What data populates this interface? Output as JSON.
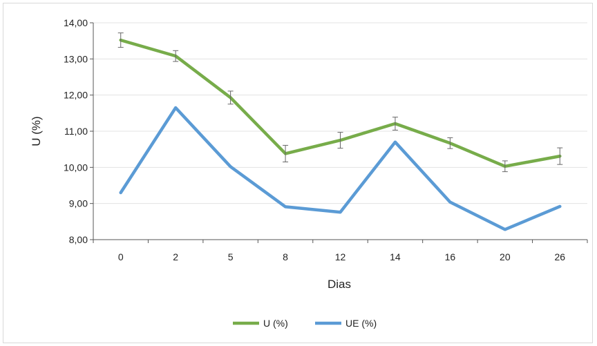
{
  "chart_data": {
    "type": "line",
    "title": "",
    "xlabel": "Dias",
    "ylabel": "U (%)",
    "categories": [
      "0",
      "2",
      "5",
      "8",
      "12",
      "14",
      "16",
      "20",
      "26"
    ],
    "ylim": [
      8,
      14
    ],
    "yticks": [
      "8,00",
      "9,00",
      "10,00",
      "11,00",
      "12,00",
      "13,00",
      "14,00"
    ],
    "grid": true,
    "legend_position": "bottom",
    "series": [
      {
        "name": "U (%)",
        "color": "#77ac4a",
        "values": [
          13.52,
          13.08,
          11.93,
          10.38,
          10.75,
          11.21,
          10.67,
          10.03,
          10.31
        ],
        "error": [
          0.2,
          0.15,
          0.18,
          0.23,
          0.22,
          0.18,
          0.15,
          0.15,
          0.23
        ]
      },
      {
        "name": "UE (%)",
        "color": "#5b9bd5",
        "values": [
          9.3,
          11.65,
          10.02,
          8.91,
          8.76,
          10.7,
          9.04,
          8.28,
          8.92
        ]
      }
    ]
  }
}
